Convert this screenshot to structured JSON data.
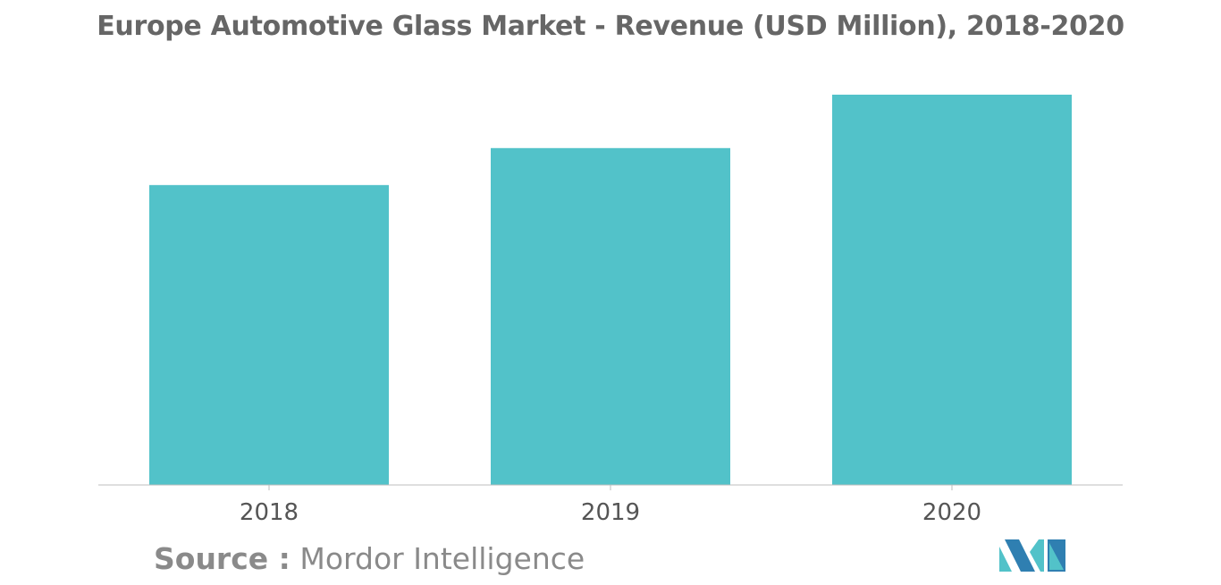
{
  "chart_data": {
    "type": "bar",
    "title": "Europe Automotive Glass Market - Revenue (USD Million), 2018-2020",
    "categories": [
      "2018",
      "2019",
      "2020"
    ],
    "values": [
      73,
      82,
      95
    ],
    "xlabel": "",
    "ylabel": "",
    "ylim": [
      0,
      100
    ],
    "grid": false,
    "bar_color": "#52c2c9",
    "axis_color": "#bdbdbd"
  },
  "source": {
    "label": "Source :",
    "text": "Mordor Intelligence"
  },
  "logo": {
    "icon": "mordor-intelligence-logo-icon",
    "colors": [
      "#2f7fb1",
      "#52c2c9"
    ]
  }
}
